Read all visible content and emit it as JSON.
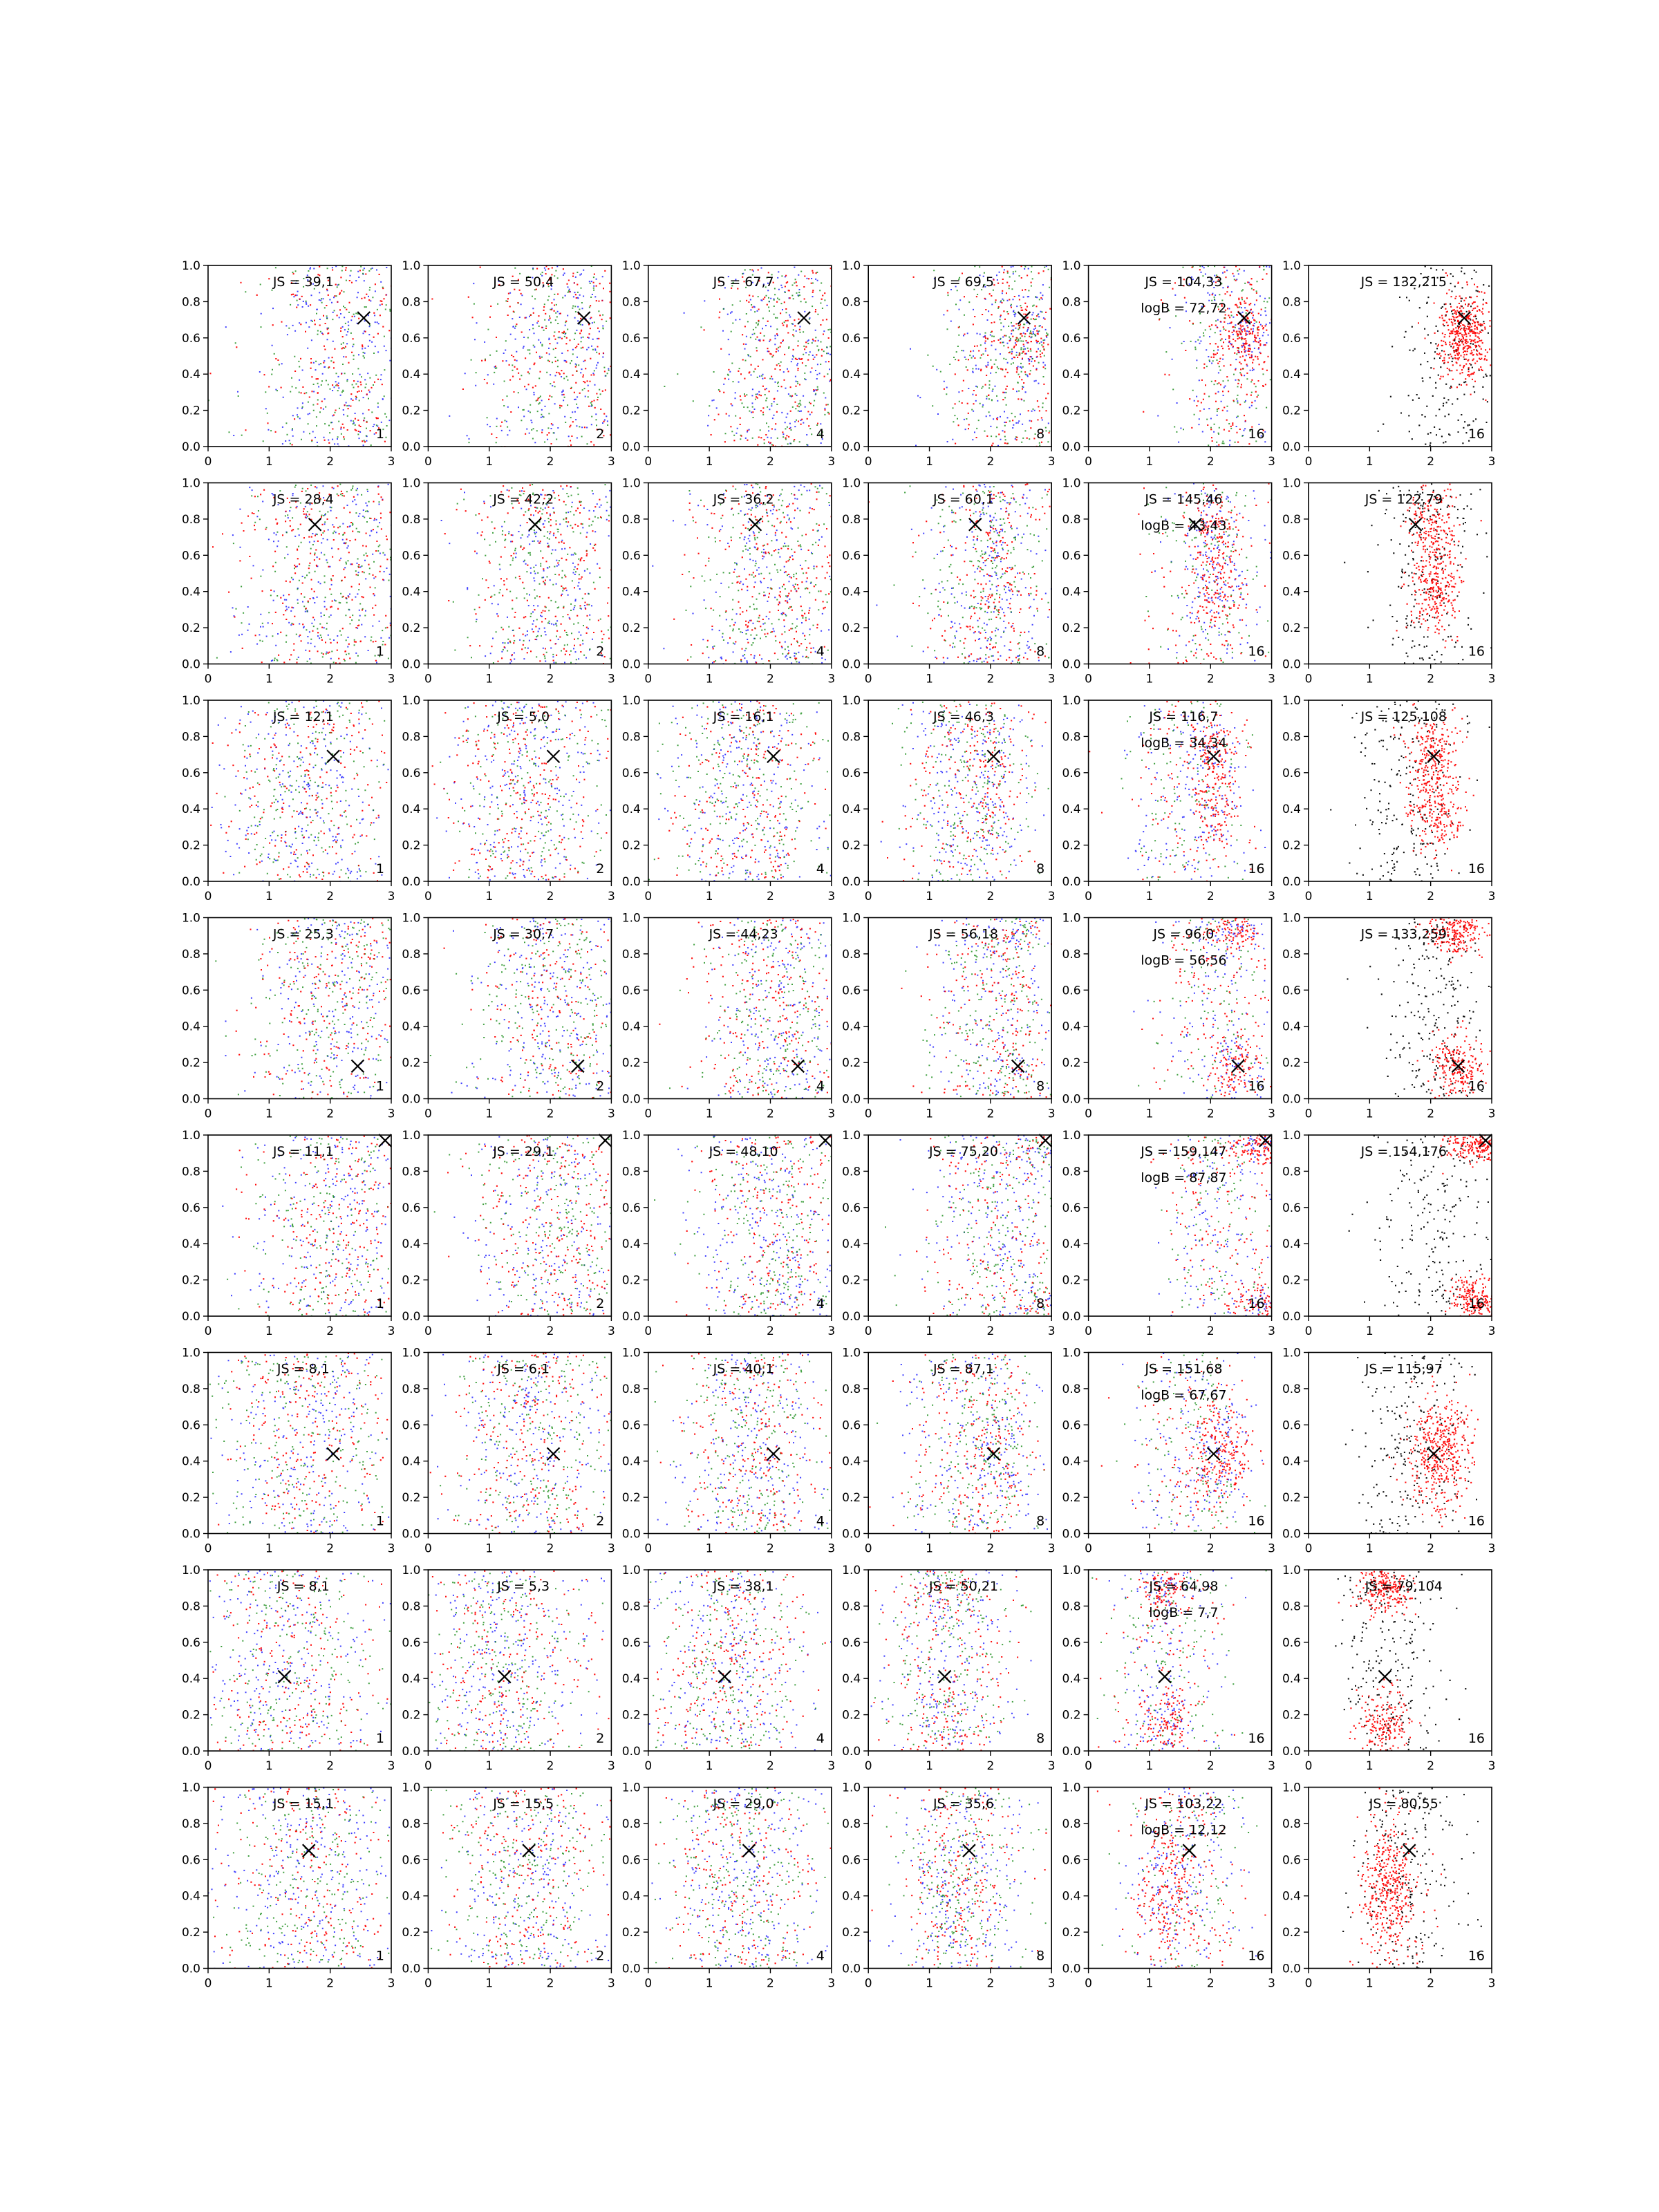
{
  "figure": {
    "rows": 8,
    "cols": 6,
    "x_ticks": [
      "0",
      "1",
      "2",
      "3"
    ],
    "y_ticks": [
      "0.0",
      "0.2",
      "0.4",
      "0.6",
      "0.8",
      "1.0"
    ],
    "colors": {
      "red": "#ff0000",
      "blue": "#0000ff",
      "green": "#008000",
      "black": "#000000",
      "frame": "#000000"
    }
  },
  "chart_data": [
    {
      "type": "scatter",
      "row": 0,
      "col": 0,
      "js_label": "JS = 39,1",
      "logb_label": "",
      "corner_label": "1",
      "marker": [
        2.55,
        0.71
      ],
      "xlim": [
        0,
        3
      ],
      "ylim": [
        0,
        1
      ]
    },
    {
      "type": "scatter",
      "row": 0,
      "col": 1,
      "js_label": "JS = 50,4",
      "logb_label": "",
      "corner_label": "2",
      "marker": [
        2.55,
        0.71
      ],
      "xlim": [
        0,
        3
      ],
      "ylim": [
        0,
        1
      ]
    },
    {
      "type": "scatter",
      "row": 0,
      "col": 2,
      "js_label": "JS = 67,7",
      "logb_label": "",
      "corner_label": "4",
      "marker": [
        2.55,
        0.71
      ],
      "xlim": [
        0,
        3
      ],
      "ylim": [
        0,
        1
      ]
    },
    {
      "type": "scatter",
      "row": 0,
      "col": 3,
      "js_label": "JS = 69,5",
      "logb_label": "",
      "corner_label": "8",
      "marker": [
        2.55,
        0.71
      ],
      "xlim": [
        0,
        3
      ],
      "ylim": [
        0,
        1
      ]
    },
    {
      "type": "scatter",
      "row": 0,
      "col": 4,
      "js_label": "JS = 104,33",
      "logb_label": "logB = 72,72",
      "corner_label": "16",
      "marker": [
        2.55,
        0.71
      ],
      "xlim": [
        0,
        3
      ],
      "ylim": [
        0,
        1
      ]
    },
    {
      "type": "scatter",
      "row": 0,
      "col": 5,
      "js_label": "JS = 132,215",
      "logb_label": "",
      "corner_label": "16",
      "marker": [
        2.55,
        0.71
      ],
      "xlim": [
        0,
        3
      ],
      "ylim": [
        0,
        1
      ]
    },
    {
      "type": "scatter",
      "row": 1,
      "col": 0,
      "js_label": "JS = 28,4",
      "logb_label": "",
      "corner_label": "1",
      "marker": [
        1.75,
        0.77
      ],
      "xlim": [
        0,
        3
      ],
      "ylim": [
        0,
        1
      ]
    },
    {
      "type": "scatter",
      "row": 1,
      "col": 1,
      "js_label": "JS = 42,2",
      "logb_label": "",
      "corner_label": "2",
      "marker": [
        1.75,
        0.77
      ],
      "xlim": [
        0,
        3
      ],
      "ylim": [
        0,
        1
      ]
    },
    {
      "type": "scatter",
      "row": 1,
      "col": 2,
      "js_label": "JS = 36,2",
      "logb_label": "",
      "corner_label": "4",
      "marker": [
        1.75,
        0.77
      ],
      "xlim": [
        0,
        3
      ],
      "ylim": [
        0,
        1
      ]
    },
    {
      "type": "scatter",
      "row": 1,
      "col": 3,
      "js_label": "JS = 60,1",
      "logb_label": "",
      "corner_label": "8",
      "marker": [
        1.75,
        0.77
      ],
      "xlim": [
        0,
        3
      ],
      "ylim": [
        0,
        1
      ]
    },
    {
      "type": "scatter",
      "row": 1,
      "col": 4,
      "js_label": "JS = 145,46",
      "logb_label": "logB = 43,43",
      "corner_label": "16",
      "marker": [
        1.75,
        0.77
      ],
      "xlim": [
        0,
        3
      ],
      "ylim": [
        0,
        1
      ]
    },
    {
      "type": "scatter",
      "row": 1,
      "col": 5,
      "js_label": "JS = 122,79",
      "logb_label": "",
      "corner_label": "16",
      "marker": [
        1.75,
        0.77
      ],
      "xlim": [
        0,
        3
      ],
      "ylim": [
        0,
        1
      ]
    },
    {
      "type": "scatter",
      "row": 2,
      "col": 0,
      "js_label": "JS = 12,1",
      "logb_label": "",
      "corner_label": "1",
      "marker": [
        2.05,
        0.69
      ],
      "xlim": [
        0,
        3
      ],
      "ylim": [
        0,
        1
      ]
    },
    {
      "type": "scatter",
      "row": 2,
      "col": 1,
      "js_label": "JS = 5,0",
      "logb_label": "",
      "corner_label": "2",
      "marker": [
        2.05,
        0.69
      ],
      "xlim": [
        0,
        3
      ],
      "ylim": [
        0,
        1
      ]
    },
    {
      "type": "scatter",
      "row": 2,
      "col": 2,
      "js_label": "JS = 16,1",
      "logb_label": "",
      "corner_label": "4",
      "marker": [
        2.05,
        0.69
      ],
      "xlim": [
        0,
        3
      ],
      "ylim": [
        0,
        1
      ]
    },
    {
      "type": "scatter",
      "row": 2,
      "col": 3,
      "js_label": "JS = 46,3",
      "logb_label": "",
      "corner_label": "8",
      "marker": [
        2.05,
        0.69
      ],
      "xlim": [
        0,
        3
      ],
      "ylim": [
        0,
        1
      ]
    },
    {
      "type": "scatter",
      "row": 2,
      "col": 4,
      "js_label": "JS = 116,7",
      "logb_label": "logB = 34,34",
      "corner_label": "16",
      "marker": [
        2.05,
        0.69
      ],
      "xlim": [
        0,
        3
      ],
      "ylim": [
        0,
        1
      ]
    },
    {
      "type": "scatter",
      "row": 2,
      "col": 5,
      "js_label": "JS = 125,108",
      "logb_label": "",
      "corner_label": "16",
      "marker": [
        2.05,
        0.69
      ],
      "xlim": [
        0,
        3
      ],
      "ylim": [
        0,
        1
      ]
    },
    {
      "type": "scatter",
      "row": 3,
      "col": 0,
      "js_label": "JS = 25,3",
      "logb_label": "",
      "corner_label": "1",
      "marker": [
        2.45,
        0.18
      ],
      "xlim": [
        0,
        3
      ],
      "ylim": [
        0,
        1
      ]
    },
    {
      "type": "scatter",
      "row": 3,
      "col": 1,
      "js_label": "JS = 30,7",
      "logb_label": "",
      "corner_label": "2",
      "marker": [
        2.45,
        0.18
      ],
      "xlim": [
        0,
        3
      ],
      "ylim": [
        0,
        1
      ]
    },
    {
      "type": "scatter",
      "row": 3,
      "col": 2,
      "js_label": "JS = 44,23",
      "logb_label": "",
      "corner_label": "4",
      "marker": [
        2.45,
        0.18
      ],
      "xlim": [
        0,
        3
      ],
      "ylim": [
        0,
        1
      ]
    },
    {
      "type": "scatter",
      "row": 3,
      "col": 3,
      "js_label": "JS = 56,18",
      "logb_label": "",
      "corner_label": "8",
      "marker": [
        2.45,
        0.18
      ],
      "xlim": [
        0,
        3
      ],
      "ylim": [
        0,
        1
      ]
    },
    {
      "type": "scatter",
      "row": 3,
      "col": 4,
      "js_label": "JS = 96,0",
      "logb_label": "logB = 56,56",
      "corner_label": "16",
      "marker": [
        2.45,
        0.18
      ],
      "xlim": [
        0,
        3
      ],
      "ylim": [
        0,
        1
      ]
    },
    {
      "type": "scatter",
      "row": 3,
      "col": 5,
      "js_label": "JS = 133,259",
      "logb_label": "",
      "corner_label": "16",
      "marker": [
        2.45,
        0.18
      ],
      "xlim": [
        0,
        3
      ],
      "ylim": [
        0,
        1
      ]
    },
    {
      "type": "scatter",
      "row": 4,
      "col": 0,
      "js_label": "JS = 11,1",
      "logb_label": "",
      "corner_label": "1",
      "marker": [
        2.9,
        0.97
      ],
      "xlim": [
        0,
        3
      ],
      "ylim": [
        0,
        1
      ]
    },
    {
      "type": "scatter",
      "row": 4,
      "col": 1,
      "js_label": "JS = 29,1",
      "logb_label": "",
      "corner_label": "2",
      "marker": [
        2.9,
        0.97
      ],
      "xlim": [
        0,
        3
      ],
      "ylim": [
        0,
        1
      ]
    },
    {
      "type": "scatter",
      "row": 4,
      "col": 2,
      "js_label": "JS = 48,10",
      "logb_label": "",
      "corner_label": "4",
      "marker": [
        2.9,
        0.97
      ],
      "xlim": [
        0,
        3
      ],
      "ylim": [
        0,
        1
      ]
    },
    {
      "type": "scatter",
      "row": 4,
      "col": 3,
      "js_label": "JS = 75,20",
      "logb_label": "",
      "corner_label": "8",
      "marker": [
        2.9,
        0.97
      ],
      "xlim": [
        0,
        3
      ],
      "ylim": [
        0,
        1
      ]
    },
    {
      "type": "scatter",
      "row": 4,
      "col": 4,
      "js_label": "JS = 159,147",
      "logb_label": "logB = 87,87",
      "corner_label": "16",
      "marker": [
        2.9,
        0.97
      ],
      "xlim": [
        0,
        3
      ],
      "ylim": [
        0,
        1
      ]
    },
    {
      "type": "scatter",
      "row": 4,
      "col": 5,
      "js_label": "JS = 154,176",
      "logb_label": "",
      "corner_label": "16",
      "marker": [
        2.9,
        0.97
      ],
      "xlim": [
        0,
        3
      ],
      "ylim": [
        0,
        1
      ]
    },
    {
      "type": "scatter",
      "row": 5,
      "col": 0,
      "js_label": "JS = 8,1",
      "logb_label": "",
      "corner_label": "1",
      "marker": [
        2.05,
        0.44
      ],
      "xlim": [
        0,
        3
      ],
      "ylim": [
        0,
        1
      ]
    },
    {
      "type": "scatter",
      "row": 5,
      "col": 1,
      "js_label": "JS = 6,1",
      "logb_label": "",
      "corner_label": "2",
      "marker": [
        2.05,
        0.44
      ],
      "xlim": [
        0,
        3
      ],
      "ylim": [
        0,
        1
      ]
    },
    {
      "type": "scatter",
      "row": 5,
      "col": 2,
      "js_label": "JS = 40,1",
      "logb_label": "",
      "corner_label": "4",
      "marker": [
        2.05,
        0.44
      ],
      "xlim": [
        0,
        3
      ],
      "ylim": [
        0,
        1
      ]
    },
    {
      "type": "scatter",
      "row": 5,
      "col": 3,
      "js_label": "JS = 87,1",
      "logb_label": "",
      "corner_label": "8",
      "marker": [
        2.05,
        0.44
      ],
      "xlim": [
        0,
        3
      ],
      "ylim": [
        0,
        1
      ]
    },
    {
      "type": "scatter",
      "row": 5,
      "col": 4,
      "js_label": "JS = 151,68",
      "logb_label": "logB = 67,67",
      "corner_label": "16",
      "marker": [
        2.05,
        0.44
      ],
      "xlim": [
        0,
        3
      ],
      "ylim": [
        0,
        1
      ]
    },
    {
      "type": "scatter",
      "row": 5,
      "col": 5,
      "js_label": "JS = 115,97",
      "logb_label": "",
      "corner_label": "16",
      "marker": [
        2.05,
        0.44
      ],
      "xlim": [
        0,
        3
      ],
      "ylim": [
        0,
        1
      ]
    },
    {
      "type": "scatter",
      "row": 6,
      "col": 0,
      "js_label": "JS = 8,1",
      "logb_label": "",
      "corner_label": "1",
      "marker": [
        1.25,
        0.41
      ],
      "xlim": [
        0,
        3
      ],
      "ylim": [
        0,
        1
      ]
    },
    {
      "type": "scatter",
      "row": 6,
      "col": 1,
      "js_label": "JS = 5,3",
      "logb_label": "",
      "corner_label": "2",
      "marker": [
        1.25,
        0.41
      ],
      "xlim": [
        0,
        3
      ],
      "ylim": [
        0,
        1
      ]
    },
    {
      "type": "scatter",
      "row": 6,
      "col": 2,
      "js_label": "JS = 38,1",
      "logb_label": "",
      "corner_label": "4",
      "marker": [
        1.25,
        0.41
      ],
      "xlim": [
        0,
        3
      ],
      "ylim": [
        0,
        1
      ]
    },
    {
      "type": "scatter",
      "row": 6,
      "col": 3,
      "js_label": "JS = 50,21",
      "logb_label": "",
      "corner_label": "8",
      "marker": [
        1.25,
        0.41
      ],
      "xlim": [
        0,
        3
      ],
      "ylim": [
        0,
        1
      ]
    },
    {
      "type": "scatter",
      "row": 6,
      "col": 4,
      "js_label": "JS = 64,98",
      "logb_label": "logB = 7,7",
      "corner_label": "16",
      "marker": [
        1.25,
        0.41
      ],
      "xlim": [
        0,
        3
      ],
      "ylim": [
        0,
        1
      ]
    },
    {
      "type": "scatter",
      "row": 6,
      "col": 5,
      "js_label": "JS = 79,104",
      "logb_label": "",
      "corner_label": "16",
      "marker": [
        1.25,
        0.41
      ],
      "xlim": [
        0,
        3
      ],
      "ylim": [
        0,
        1
      ]
    },
    {
      "type": "scatter",
      "row": 7,
      "col": 0,
      "js_label": "JS = 15,1",
      "logb_label": "",
      "corner_label": "1",
      "marker": [
        1.65,
        0.65
      ],
      "xlim": [
        0,
        3
      ],
      "ylim": [
        0,
        1
      ]
    },
    {
      "type": "scatter",
      "row": 7,
      "col": 1,
      "js_label": "JS = 15,5",
      "logb_label": "",
      "corner_label": "2",
      "marker": [
        1.65,
        0.65
      ],
      "xlim": [
        0,
        3
      ],
      "ylim": [
        0,
        1
      ]
    },
    {
      "type": "scatter",
      "row": 7,
      "col": 2,
      "js_label": "JS = 29,0",
      "logb_label": "",
      "corner_label": "4",
      "marker": [
        1.65,
        0.65
      ],
      "xlim": [
        0,
        3
      ],
      "ylim": [
        0,
        1
      ]
    },
    {
      "type": "scatter",
      "row": 7,
      "col": 3,
      "js_label": "JS = 35,6",
      "logb_label": "",
      "corner_label": "8",
      "marker": [
        1.65,
        0.65
      ],
      "xlim": [
        0,
        3
      ],
      "ylim": [
        0,
        1
      ]
    },
    {
      "type": "scatter",
      "row": 7,
      "col": 4,
      "js_label": "JS = 103,22",
      "logb_label": "logB = 12,12",
      "corner_label": "16",
      "marker": [
        1.65,
        0.65
      ],
      "xlim": [
        0,
        3
      ],
      "ylim": [
        0,
        1
      ]
    },
    {
      "type": "scatter",
      "row": 7,
      "col": 5,
      "js_label": "JS = 80,55",
      "logb_label": "",
      "corner_label": "16",
      "marker": [
        1.65,
        0.65
      ],
      "xlim": [
        0,
        3
      ],
      "ylim": [
        0,
        1
      ]
    }
  ]
}
